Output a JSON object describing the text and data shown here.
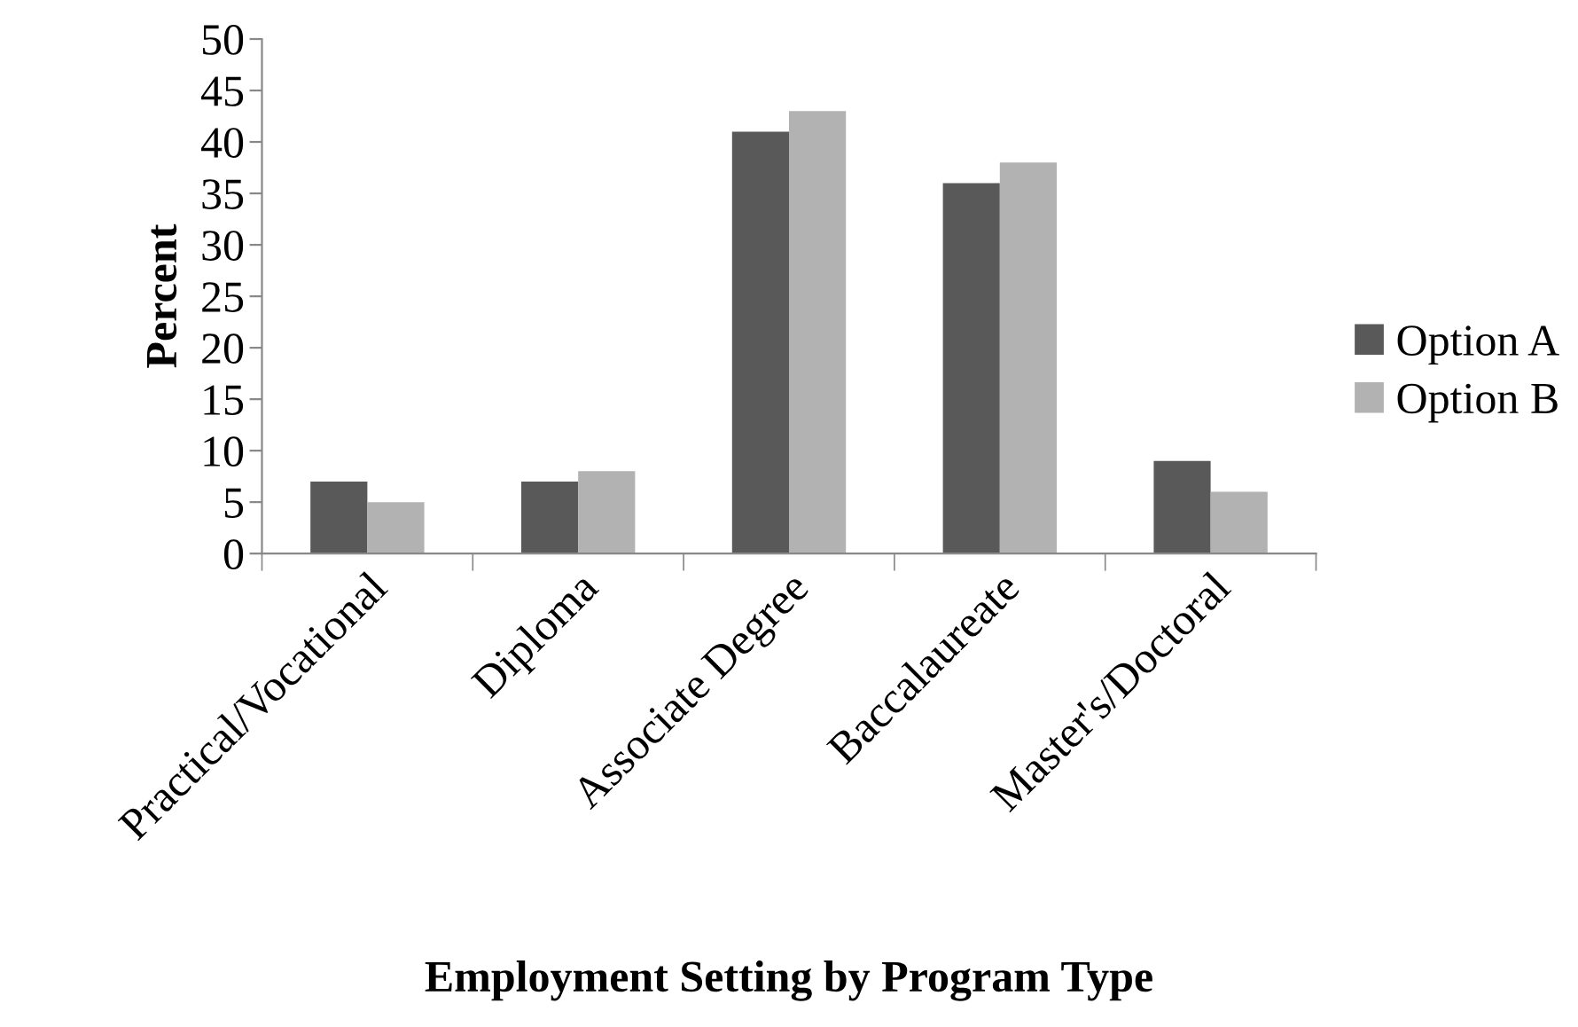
{
  "chart_data": {
    "type": "bar",
    "xlabel": "Employment Setting by Program Type",
    "ylabel": "Percent",
    "categories": [
      "Practical/Vocational",
      "Diploma",
      "Associate Degree",
      "Baccalaureate",
      "Master's/Doctoral"
    ],
    "series": [
      {
        "name": "Option A",
        "color": "#595959",
        "values": [
          7,
          7,
          41,
          36,
          9
        ]
      },
      {
        "name": "Option B",
        "color": "#b2b2b2",
        "values": [
          5,
          8,
          43,
          38,
          6
        ]
      }
    ],
    "ylim": [
      0,
      50
    ],
    "yticks": [
      0,
      5,
      10,
      15,
      20,
      25,
      30,
      35,
      40,
      45,
      50
    ],
    "grid": false,
    "legend": "right"
  }
}
